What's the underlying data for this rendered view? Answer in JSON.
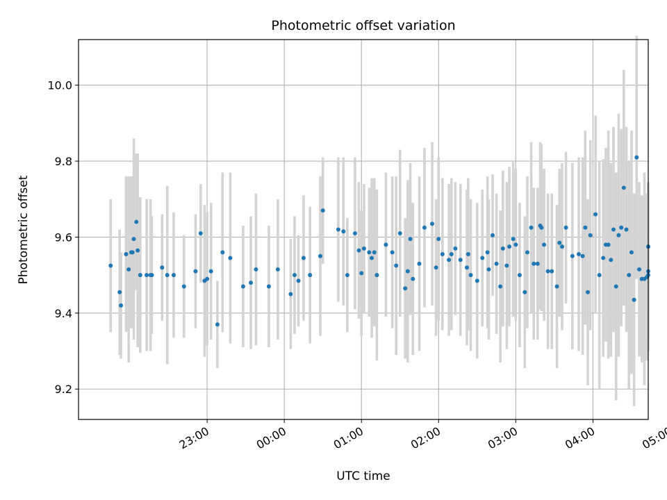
{
  "chart_data": {
    "type": "scatter",
    "title": "Photometric offset variation",
    "xlabel": "UTC time",
    "ylabel": "Photometric offset",
    "xlim": [
      -40,
      403
    ],
    "ylim": [
      9.12,
      10.12
    ],
    "x_unit": "minutes since 22:00 UTC",
    "grid": true,
    "marker_color": "#1f77b4",
    "errorbar_color": "#d3d3d3",
    "x_ticks": [
      {
        "value": 60,
        "label": "23:00"
      },
      {
        "value": 120,
        "label": "00:00"
      },
      {
        "value": 180,
        "label": "01:00"
      },
      {
        "value": 240,
        "label": "02:00"
      },
      {
        "value": 300,
        "label": "03:00"
      },
      {
        "value": 360,
        "label": "04:00"
      },
      {
        "value": 420,
        "label": "05:00"
      }
    ],
    "y_ticks": [
      {
        "value": 9.2,
        "label": "9.2"
      },
      {
        "value": 9.4,
        "label": "9.4"
      },
      {
        "value": 9.6,
        "label": "9.6"
      },
      {
        "value": 9.8,
        "label": "9.8"
      },
      {
        "value": 10.0,
        "label": "10.0"
      }
    ],
    "series": [
      {
        "name": "offset",
        "x": [
          -15,
          -8,
          -7,
          -3,
          -1,
          1,
          2,
          3,
          5,
          6,
          8,
          13,
          16,
          17,
          25,
          29,
          34,
          42,
          51,
          55,
          58,
          60,
          63,
          68,
          72,
          78,
          88,
          94,
          98,
          108,
          115,
          125,
          128,
          131,
          135,
          140,
          148,
          150,
          162,
          166,
          169,
          175,
          178,
          180,
          182,
          186,
          188,
          190,
          192,
          199,
          204,
          207,
          210,
          214,
          216,
          218,
          220,
          225,
          229,
          235,
          238,
          240,
          243,
          248,
          250,
          253,
          257,
          262,
          263,
          265,
          270,
          274,
          278,
          279,
          282,
          285,
          288,
          290,
          293,
          295,
          298,
          300,
          303,
          307,
          309,
          312,
          314,
          317,
          319,
          320,
          322,
          325,
          328,
          332,
          334,
          336,
          339,
          344,
          349,
          352,
          354,
          356,
          358,
          362,
          365,
          368,
          370,
          372,
          374,
          376,
          378,
          380,
          382,
          384,
          386,
          388,
          390,
          392,
          394,
          396,
          398,
          400,
          402,
          403,
          403,
          403,
          403
        ],
        "y": [
          9.525,
          9.455,
          9.42,
          9.555,
          9.515,
          9.56,
          9.56,
          9.595,
          9.64,
          9.565,
          9.5,
          9.5,
          9.5,
          9.5,
          9.52,
          9.5,
          9.5,
          9.47,
          9.51,
          9.61,
          9.485,
          9.49,
          9.51,
          9.37,
          9.56,
          9.545,
          9.47,
          9.48,
          9.515,
          9.47,
          9.515,
          9.45,
          9.5,
          9.485,
          9.545,
          9.5,
          9.55,
          9.67,
          9.62,
          9.615,
          9.5,
          9.61,
          9.565,
          9.505,
          9.57,
          9.56,
          9.545,
          9.56,
          9.5,
          9.58,
          9.56,
          9.525,
          9.61,
          9.465,
          9.51,
          9.595,
          9.49,
          9.53,
          9.625,
          9.635,
          9.52,
          9.595,
          9.555,
          9.54,
          9.555,
          9.57,
          9.54,
          9.52,
          9.555,
          9.5,
          9.485,
          9.545,
          9.56,
          9.515,
          9.605,
          9.53,
          9.47,
          9.57,
          9.525,
          9.575,
          9.595,
          9.58,
          9.5,
          9.455,
          9.56,
          9.625,
          9.53,
          9.53,
          9.63,
          9.625,
          9.58,
          9.51,
          9.51,
          9.47,
          9.585,
          9.575,
          9.625,
          9.55,
          9.555,
          9.55,
          9.625,
          9.455,
          9.605,
          9.66,
          9.5,
          9.545,
          9.58,
          9.58,
          9.54,
          9.62,
          9.47,
          9.605,
          9.625,
          9.73,
          9.62,
          9.5,
          9.56,
          9.435,
          9.81,
          9.515,
          9.49,
          9.49,
          9.495,
          9.5,
          9.51,
          9.575,
          9.575
        ],
        "yerr": [
          0.175,
          0.165,
          0.14,
          0.205,
          0.245,
          0.2,
          0.2,
          0.265,
          0.18,
          0.255,
          0.205,
          0.2,
          0.2,
          0.155,
          0.14,
          0.235,
          0.165,
          0.135,
          0.15,
          0.13,
          0.2,
          0.175,
          0.18,
          0.115,
          0.21,
          0.225,
          0.16,
          0.175,
          0.2,
          0.16,
          0.185,
          0.145,
          0.155,
          0.12,
          0.165,
          0.18,
          0.21,
          0.14,
          0.19,
          0.195,
          0.15,
          0.2,
          0.18,
          0.165,
          0.17,
          0.17,
          0.21,
          0.195,
          0.225,
          0.19,
          0.2,
          0.235,
          0.22,
          0.185,
          0.24,
          0.2,
          0.2,
          0.23,
          0.21,
          0.215,
          0.18,
          0.215,
          0.2,
          0.2,
          0.2,
          0.175,
          0.2,
          0.205,
          0.2,
          0.2,
          0.205,
          0.18,
          0.2,
          0.185,
          0.16,
          0.185,
          0.2,
          0.205,
          0.22,
          0.21,
          0.205,
          0.2,
          0.19,
          0.2,
          0.2,
          0.225,
          0.2,
          0.2,
          0.22,
          0.22,
          0.2,
          0.205,
          0.205,
          0.215,
          0.195,
          0.22,
          0.2,
          0.245,
          0.255,
          0.26,
          0.255,
          0.245,
          0.25,
          0.26,
          0.3,
          0.26,
          0.255,
          0.3,
          0.255,
          0.27,
          0.3,
          0.32,
          0.26,
          0.31,
          0.27,
          0.3,
          0.32,
          0.28,
          0.32,
          0.23,
          0.22,
          0.28,
          0.22,
          0.2,
          0.18,
          0.17,
          0.17
        ]
      }
    ]
  }
}
